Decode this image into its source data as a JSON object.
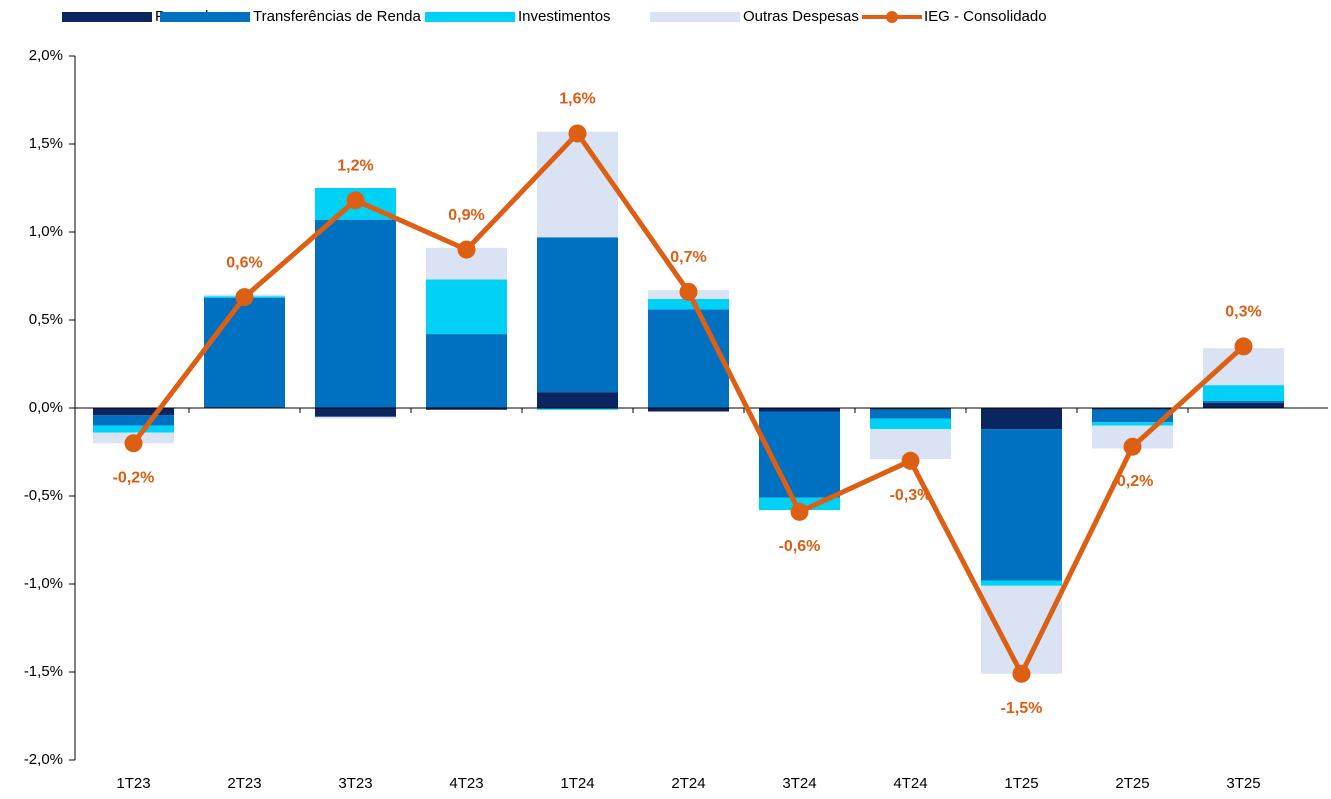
{
  "chart_data": {
    "type": "bar+line",
    "categories": [
      "1T23",
      "2T23",
      "3T23",
      "4T23",
      "1T24",
      "2T24",
      "3T24",
      "4T24",
      "1T25",
      "2T25",
      "3T25"
    ],
    "series": [
      {
        "name": "Pessoal",
        "type": "bar",
        "color": "#0b2560",
        "values": [
          -0.04,
          0.005,
          -0.05,
          -0.01,
          0.09,
          -0.02,
          -0.02,
          -0.01,
          -0.12,
          -0.01,
          0.03
        ]
      },
      {
        "name": "Transferências de Renda",
        "type": "bar",
        "color": "#0070c0",
        "values": [
          -0.06,
          0.62,
          1.07,
          0.42,
          0.88,
          0.56,
          -0.49,
          -0.05,
          -0.86,
          -0.07,
          0.01
        ]
      },
      {
        "name": "Investimentos",
        "type": "bar",
        "color": "#00d2f7",
        "values": [
          -0.04,
          0.01,
          0.18,
          0.31,
          -0.01,
          0.06,
          -0.07,
          -0.06,
          -0.03,
          -0.02,
          0.09
        ]
      },
      {
        "name": "Outras Despesas",
        "type": "bar",
        "color": "#dae3f3",
        "values": [
          -0.06,
          0.01,
          -0.01,
          0.18,
          0.6,
          0.05,
          0,
          -0.17,
          -0.5,
          -0.13,
          0.21
        ]
      },
      {
        "name": "IEG - Consolidado",
        "type": "line",
        "color": "#dd5f13",
        "values": [
          -0.2,
          0.63,
          1.18,
          0.9,
          1.56,
          0.66,
          -0.59,
          -0.3,
          -1.51,
          -0.22,
          0.35
        ],
        "value_labels": [
          "-0,2%",
          "0,6%",
          "1,2%",
          "0,9%",
          "1,6%",
          "0,7%",
          "-0,6%",
          "-0,3%",
          "-1,5%",
          "-0,2%",
          "0,3%"
        ]
      }
    ],
    "ylim": [
      -2,
      2
    ],
    "yticks": [
      {
        "value": -2,
        "label": "-2,0%"
      },
      {
        "value": -1.5,
        "label": "-1,5%"
      },
      {
        "value": -1,
        "label": "-1,0%"
      },
      {
        "value": -0.5,
        "label": "-0,5%"
      },
      {
        "value": 0,
        "label": "0,0%"
      },
      {
        "value": 0.5,
        "label": "0,5%"
      },
      {
        "value": 1,
        "label": "1,0%"
      },
      {
        "value": 1.5,
        "label": "1,5%"
      },
      {
        "value": 2,
        "label": "2,0%"
      }
    ],
    "legend": "top"
  }
}
